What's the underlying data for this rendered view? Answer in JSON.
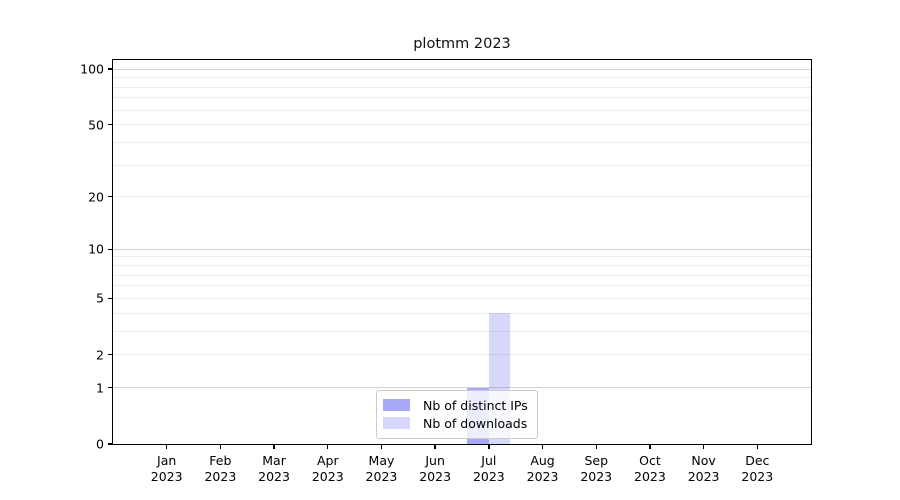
{
  "figure": {
    "background": "#ffffff"
  },
  "chart_data": {
    "type": "bar",
    "title": "plotmm 2023",
    "categories": [
      "Jan",
      "Feb",
      "Mar",
      "Apr",
      "May",
      "Jun",
      "Jul",
      "Aug",
      "Sep",
      "Oct",
      "Nov",
      "Dec"
    ],
    "category_year": "2023",
    "series": [
      {
        "name": "Nb of distinct IPs",
        "color_hex": "#a6a9f0",
        "color_rgba": "rgba(58,65,232,0.45)",
        "values": [
          0,
          0,
          0,
          0,
          0,
          0,
          1,
          0,
          0,
          0,
          0,
          0
        ]
      },
      {
        "name": "Nb of downloads",
        "color_hex": "#d8daf8",
        "color_rgba": "rgba(58,65,232,0.20)",
        "values": [
          0,
          0,
          0,
          0,
          0,
          0,
          4,
          0,
          0,
          0,
          0,
          0
        ]
      }
    ],
    "xlabel": "",
    "ylabel": "",
    "y_axis": {
      "scale": "log1p",
      "min": 0,
      "max": 112,
      "tick_values": [
        0,
        1,
        2,
        5,
        10,
        20,
        50,
        100
      ],
      "tick_labels": [
        "0",
        "1",
        "2",
        "5",
        "10",
        "20",
        "50",
        "100"
      ],
      "major_gridline_values": [
        1,
        10,
        100
      ],
      "minor_gridline_values": [
        2,
        3,
        4,
        5,
        6,
        7,
        8,
        9,
        20,
        30,
        40,
        50,
        60,
        70,
        80,
        90
      ]
    },
    "grid": true,
    "legend": {
      "position": "lower center",
      "entries": [
        "Nb of distinct IPs",
        "Nb of downloads"
      ]
    },
    "colors": {
      "major_grid": "#d2d2d2",
      "minor_grid": "#ececec",
      "spine": "#000000",
      "text": "#000000"
    }
  }
}
